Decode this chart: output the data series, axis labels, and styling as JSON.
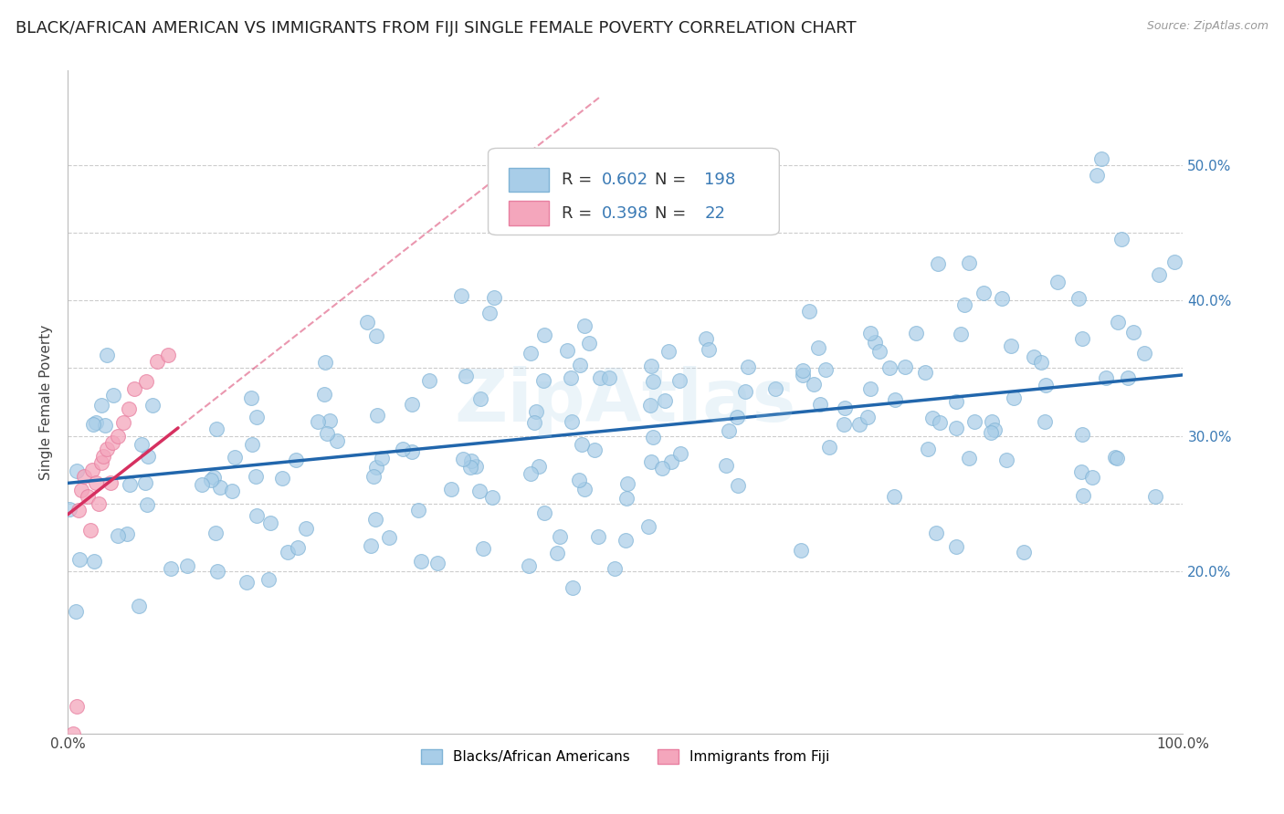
{
  "title": "BLACK/AFRICAN AMERICAN VS IMMIGRANTS FROM FIJI SINGLE FEMALE POVERTY CORRELATION CHART",
  "source": "Source: ZipAtlas.com",
  "ylabel": "Single Female Poverty",
  "blue_color": "#a8cde8",
  "blue_edge_color": "#7fb3d6",
  "pink_color": "#f4a6bc",
  "pink_edge_color": "#e87fa0",
  "blue_line_color": "#2166ac",
  "pink_line_color": "#d63060",
  "pink_dash_color": "#e8a0b0",
  "blue_R": 0.602,
  "blue_N": 198,
  "pink_R": 0.398,
  "pink_N": 22,
  "legend1_label": "Blacks/African Americans",
  "legend2_label": "Immigrants from Fiji",
  "background_color": "#ffffff",
  "watermark": "ZipAtlas",
  "grid_color": "#cccccc",
  "title_fontsize": 13,
  "axis_label_fontsize": 11,
  "tick_fontsize": 11,
  "legend_text_color": "#3a7ab5",
  "right_tick_color": "#3a7ab5",
  "ylim_low": 0.08,
  "ylim_high": 0.57,
  "xlim_low": 0.0,
  "xlim_high": 1.0
}
